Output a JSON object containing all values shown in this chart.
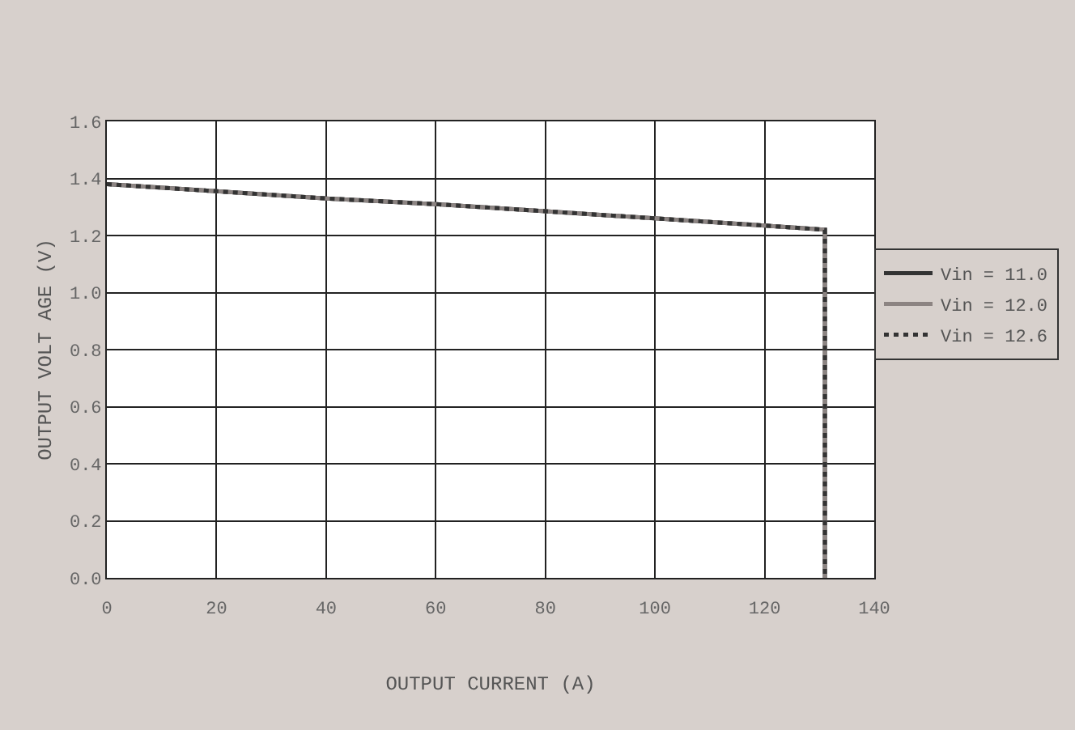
{
  "chart_data": {
    "type": "line",
    "xlabel": "OUTPUT CURRENT (A)",
    "ylabel": "OUTPUT VOLT AGE (V)",
    "xlim": [
      0,
      140
    ],
    "xticks": [
      0,
      20,
      40,
      60,
      80,
      100,
      120,
      140
    ],
    "ylim": [
      0,
      1.6
    ],
    "yticks": [
      {
        "value": 0,
        "label": "0.0"
      },
      {
        "value": 0.2,
        "label": "0.2"
      },
      {
        "value": 0.4,
        "label": "0.4"
      },
      {
        "value": 0.6,
        "label": "0.6"
      },
      {
        "value": 0.8,
        "label": "0.8"
      },
      {
        "value": 1,
        "label": "1.0"
      },
      {
        "value": 1.2,
        "label": "1.2"
      },
      {
        "value": 1.4,
        "label": "1.4"
      },
      {
        "value": 1.6,
        "label": "1.6"
      }
    ],
    "grid": true,
    "legend": "right",
    "marker": "none",
    "series": [
      {
        "name": "Vin = 11.0",
        "color": "#333333",
        "line_style": "solid",
        "x": [
          0,
          20,
          40,
          60,
          80,
          100,
          120,
          131,
          131
        ],
        "values": [
          1.38,
          1.355,
          1.33,
          1.31,
          1.285,
          1.26,
          1.235,
          1.22,
          0
        ]
      },
      {
        "name": "Vin = 12.0",
        "color": "#8c8482",
        "line_style": "solid",
        "x": [
          0,
          20,
          40,
          60,
          80,
          100,
          120,
          131,
          131
        ],
        "values": [
          1.38,
          1.355,
          1.33,
          1.31,
          1.285,
          1.26,
          1.235,
          1.22,
          0
        ]
      },
      {
        "name": "Vin = 12.6",
        "color": "#333333",
        "line_style": "dotted",
        "x": [
          0,
          20,
          40,
          60,
          80,
          100,
          120,
          131,
          131
        ],
        "values": [
          1.38,
          1.355,
          1.33,
          1.31,
          1.285,
          1.26,
          1.235,
          1.22,
          0
        ]
      }
    ]
  }
}
